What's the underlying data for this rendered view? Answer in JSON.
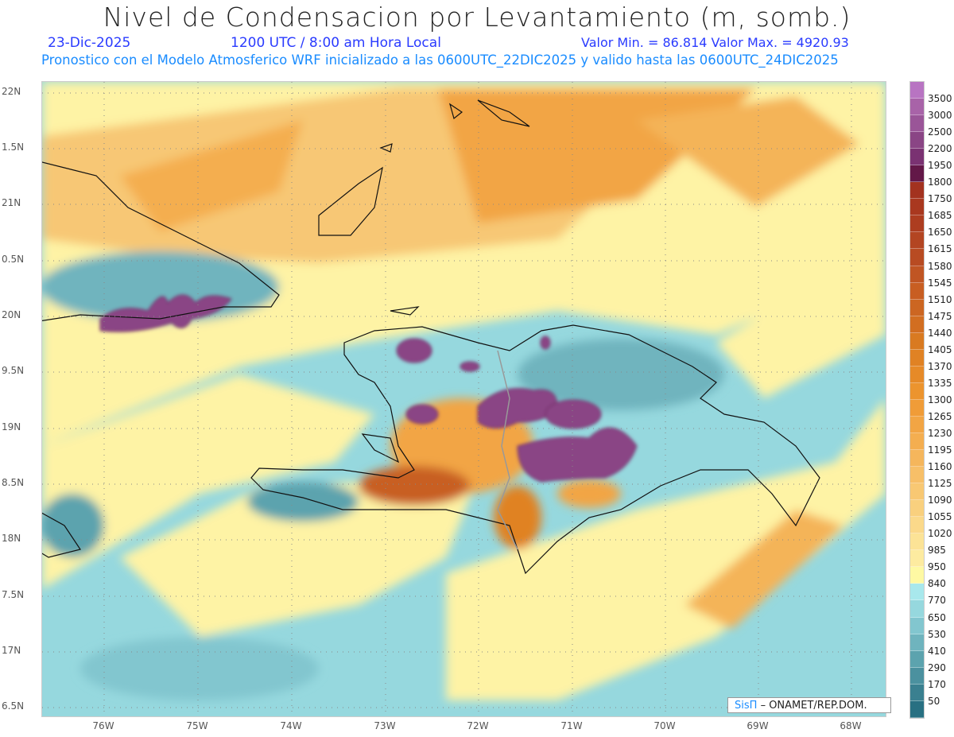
{
  "header": {
    "title": "Nivel de Condensacion por Levantamiento (m, somb.)",
    "date": "23-Dic-2025",
    "time": "1200 UTC / 8:00 am Hora Local",
    "min_max": "Valor Min. = 86.814  Valor Max. = 4920.93",
    "forecast": "Pronostico con el Modelo Atmosferico WRF inicializado a las 0600UTC_22DIC2025 y valido hasta las  0600UTC_24DIC2025"
  },
  "axes": {
    "lat_labels": [
      "22N",
      "1.5N",
      "21N",
      "0.5N",
      "20N",
      "9.5N",
      "19N",
      "8.5N",
      "18N",
      "7.5N",
      "17N",
      "6.5N"
    ],
    "lon_labels": [
      "76W",
      "75W",
      "74W",
      "73W",
      "72W",
      "71W",
      "70W",
      "69W",
      "68W"
    ]
  },
  "colorbar": {
    "labels": [
      "3500",
      "3000",
      "2500",
      "2200",
      "1950",
      "1800",
      "1750",
      "1685",
      "1650",
      "1615",
      "1580",
      "1545",
      "1510",
      "1475",
      "1440",
      "1405",
      "1370",
      "1335",
      "1300",
      "1265",
      "1230",
      "1195",
      "1160",
      "1125",
      "1090",
      "1055",
      "1020",
      "985",
      "950",
      "840",
      "770",
      "650",
      "530",
      "410",
      "290",
      "170",
      "50"
    ],
    "colors": [
      "#b874c2",
      "#a863a8",
      "#9a5598",
      "#8a4585",
      "#7a3272",
      "#631848",
      "#a3321f",
      "#a9381f",
      "#ad3d20",
      "#b34522",
      "#b84b22",
      "#c05523",
      "#c85e22",
      "#cc6622",
      "#d26e21",
      "#d97a21",
      "#e08224",
      "#e68a28",
      "#ec942e",
      "#f09c38",
      "#f2a544",
      "#f4ae50",
      "#f5b65c",
      "#f7bf68",
      "#f8c873",
      "#f9d07e",
      "#fbd98a",
      "#fce396",
      "#fdeba0",
      "#fef9a3",
      "#a8e8ec",
      "#96d8de",
      "#82c6cf",
      "#6fb4be",
      "#5ca3ae",
      "#4b919f",
      "#3a8090",
      "#287082"
    ]
  },
  "watermark": {
    "brand": "SisΠ",
    "text": "– ONAMET/REP.DOM."
  }
}
